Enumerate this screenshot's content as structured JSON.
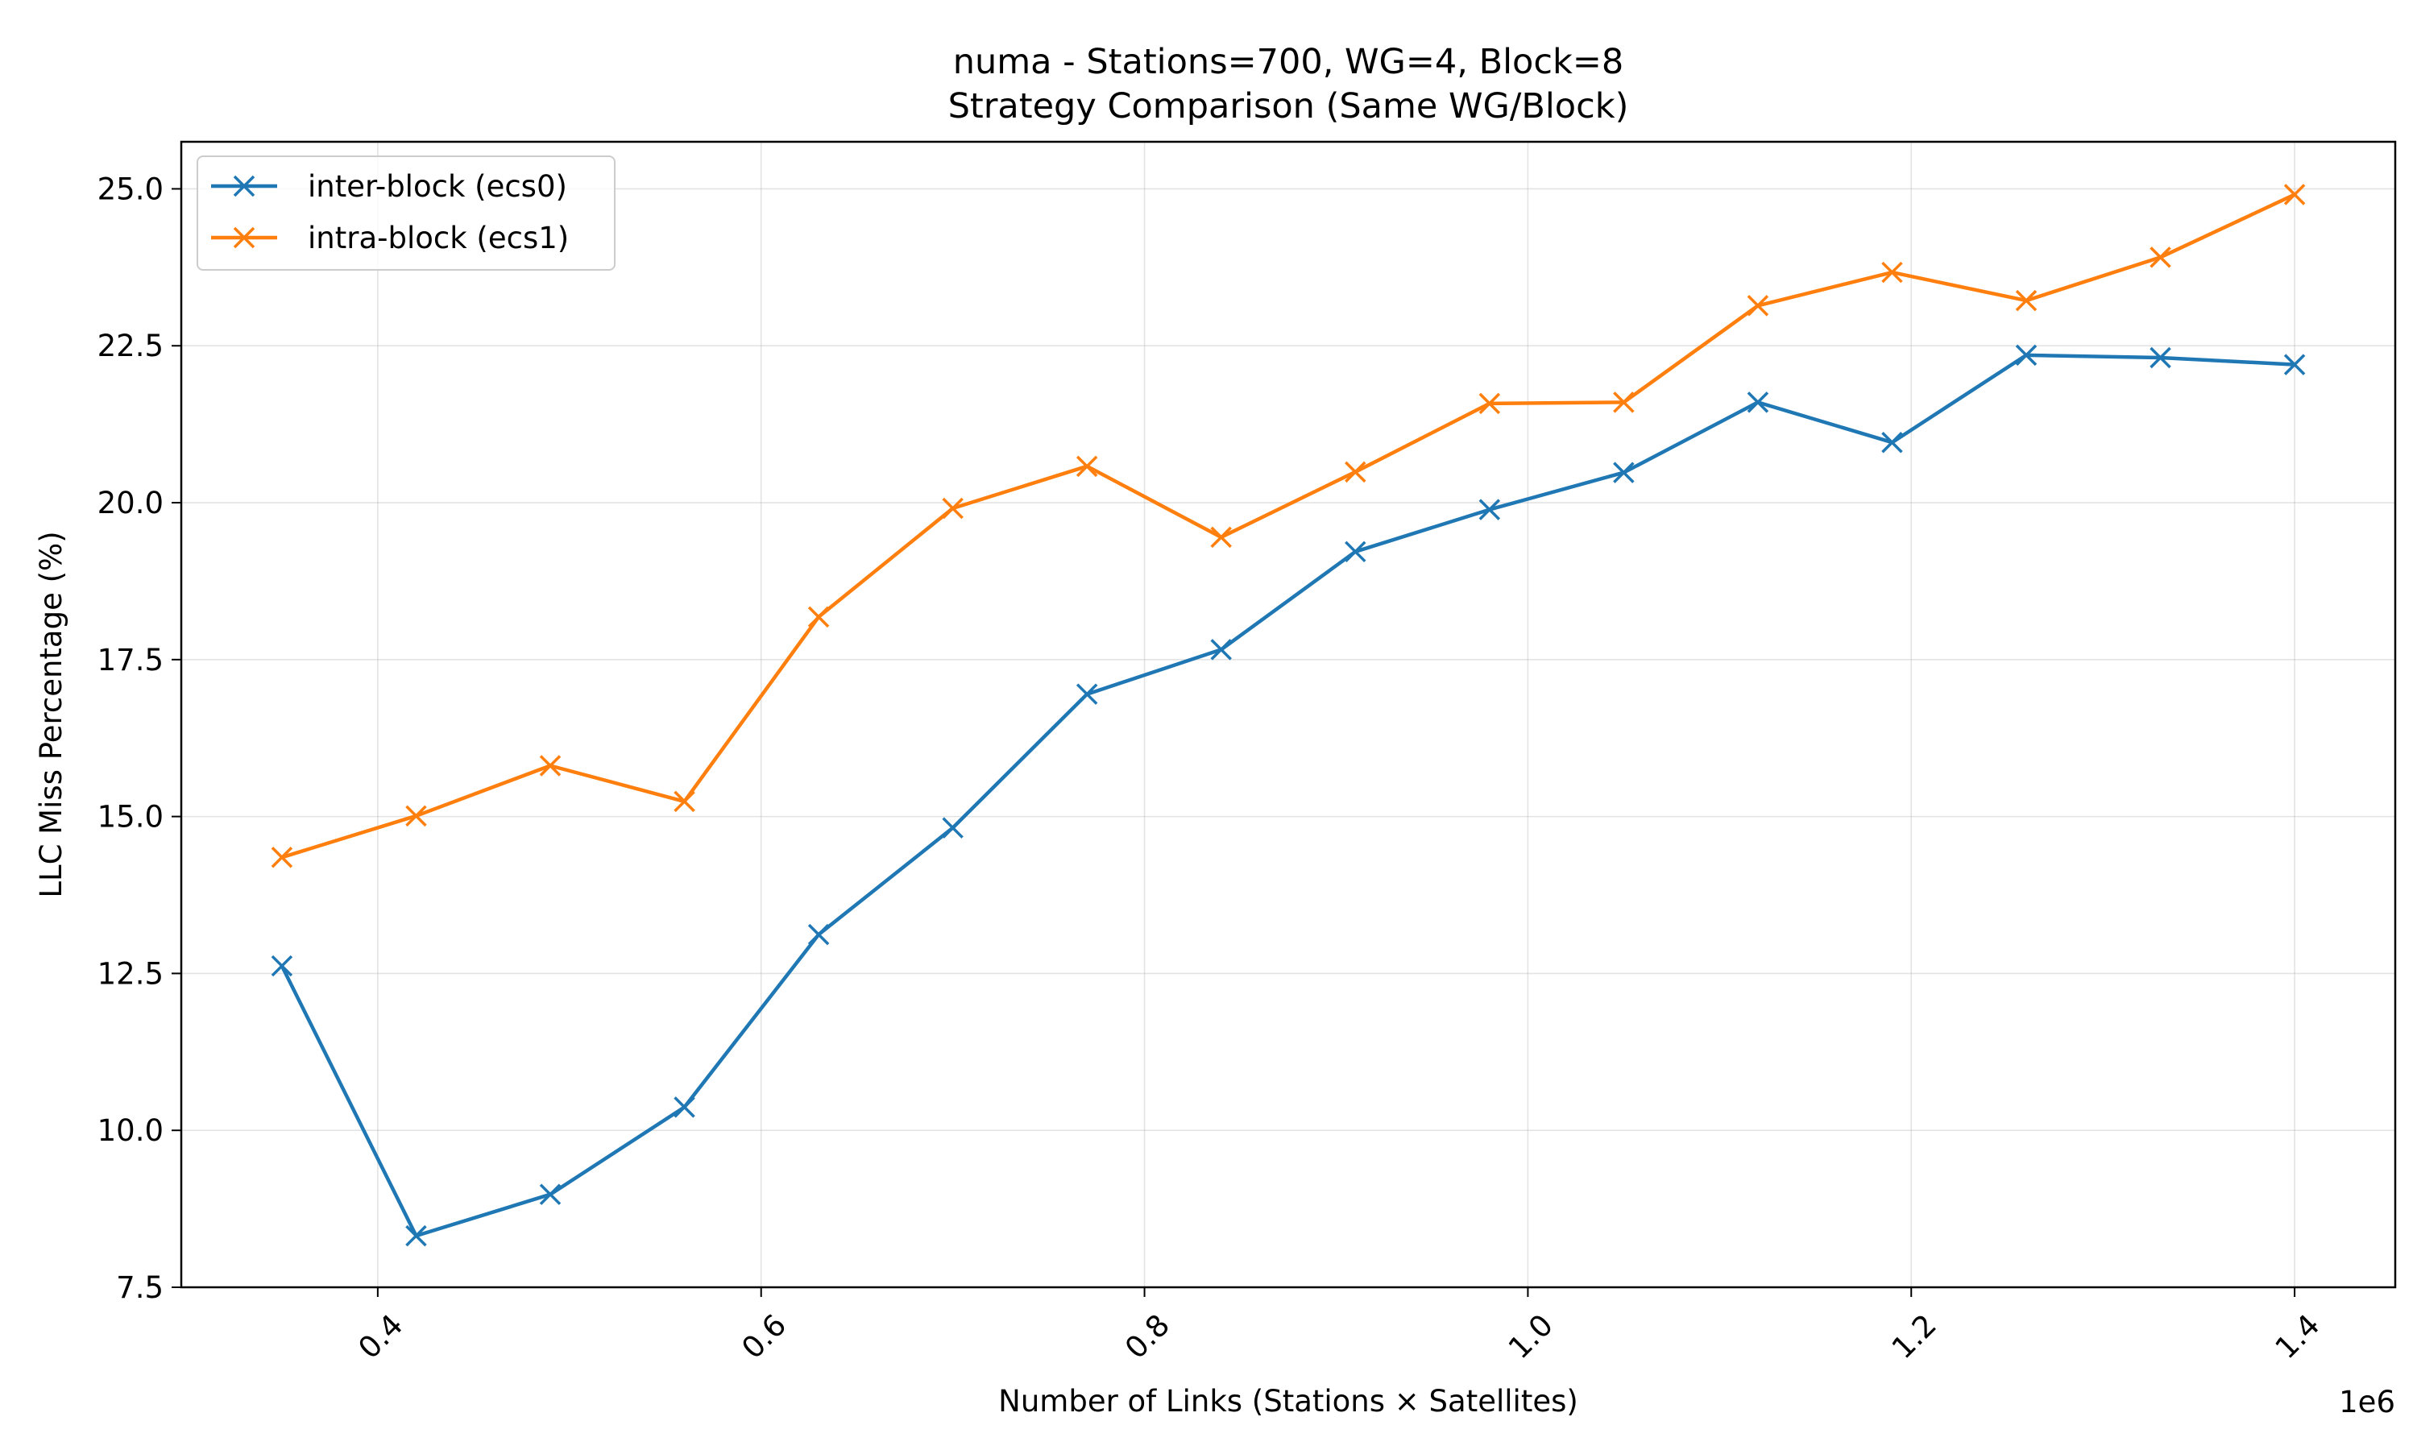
{
  "chart_data": {
    "type": "line",
    "title": [
      "numa - Stations=700, WG=4, Block=8",
      "Strategy Comparison (Same WG/Block)"
    ],
    "xlabel": "Number of Links (Stations × Satellites)",
    "ylabel": "LLC Miss Percentage (%)",
    "x_offset_label": "1e6",
    "x": [
      350000,
      420000,
      490000,
      560000,
      630000,
      700000,
      770000,
      840000,
      910000,
      980000,
      1050000,
      1120000,
      1190000,
      1260000,
      1330000,
      1400000
    ],
    "xlim": [
      297500,
      1452500
    ],
    "ylim": [
      7.5,
      25.75
    ],
    "xticks": [
      400000,
      600000,
      800000,
      1000000,
      1200000,
      1400000
    ],
    "xtick_labels": [
      "0.4",
      "0.6",
      "0.8",
      "1.0",
      "1.2",
      "1.4"
    ],
    "xtick_rotation": -45,
    "yticks": [
      7.5,
      10.0,
      12.5,
      15.0,
      17.5,
      20.0,
      22.5,
      25.0
    ],
    "ytick_labels": [
      "7.5",
      "10.0",
      "12.5",
      "15.0",
      "17.5",
      "20.0",
      "22.5",
      "25.0"
    ],
    "grid": true,
    "legend_position": "upper left",
    "marker": "x",
    "series": [
      {
        "name": "inter-block (ecs0)",
        "color": "#1f77b4",
        "values": [
          12.62,
          8.32,
          8.98,
          10.37,
          13.12,
          14.82,
          16.95,
          17.66,
          19.22,
          19.89,
          20.48,
          21.6,
          20.96,
          22.35,
          22.31,
          22.2
        ]
      },
      {
        "name": "intra-block (ecs1)",
        "color": "#ff7f0e",
        "values": [
          14.35,
          15.01,
          15.81,
          15.24,
          18.18,
          19.91,
          20.58,
          19.45,
          20.49,
          21.58,
          21.6,
          23.14,
          23.67,
          23.22,
          23.91,
          24.91
        ]
      }
    ]
  }
}
